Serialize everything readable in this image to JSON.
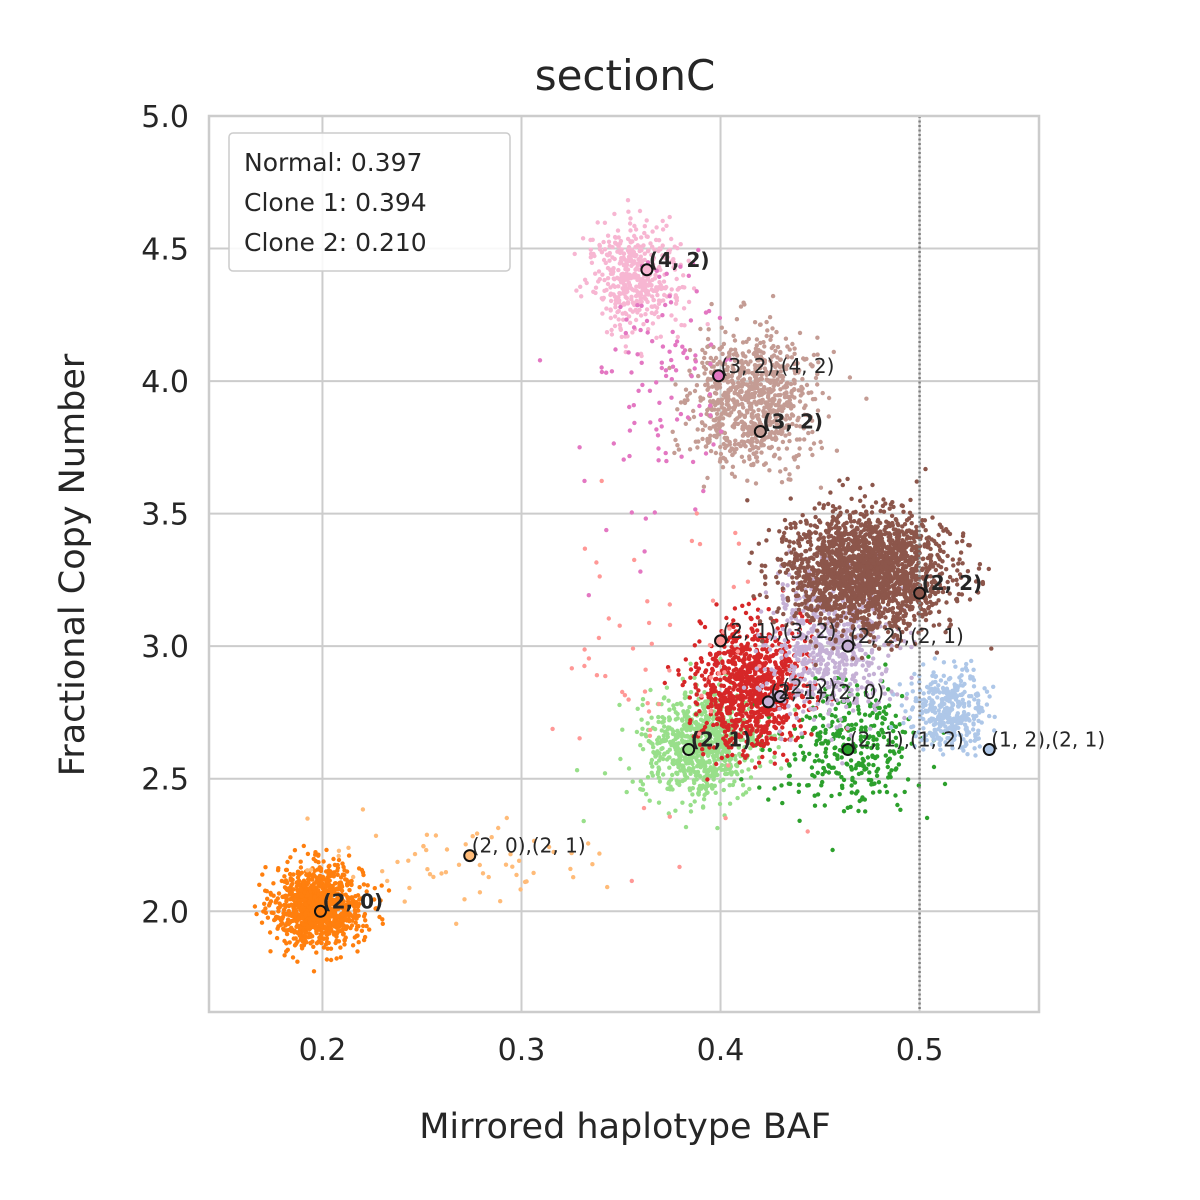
{
  "chart_data": {
    "type": "scatter",
    "title": "sectionC",
    "xlabel": "Mirrored haplotype BAF",
    "ylabel": "Fractional Copy Number",
    "xlim": [
      0.143,
      0.56
    ],
    "ylim": [
      1.62,
      5.0
    ],
    "xticks": [
      "0.2",
      "0.3",
      "0.4",
      "0.5"
    ],
    "yticks": [
      "2.0",
      "2.5",
      "3.0",
      "3.5",
      "4.0",
      "4.5",
      "5.0"
    ],
    "grid": true,
    "reference_line": {
      "x": 0.5,
      "style": "dotted"
    },
    "legend": {
      "placement": "top-left",
      "entries": [
        "Normal: 0.397",
        "Clone 1: 0.394",
        "Clone 2: 0.210"
      ]
    },
    "clusters": [
      {
        "color": "#ff7f0e",
        "x": 0.198,
        "y": 2.02,
        "sx": 0.011,
        "sy": 0.075,
        "n": 1100
      },
      {
        "color": "#ffbb78",
        "x": 0.27,
        "y": 2.18,
        "sx": 0.035,
        "sy": 0.1,
        "n": 60
      },
      {
        "color": "#98df8a",
        "x": 0.39,
        "y": 2.62,
        "sx": 0.015,
        "sy": 0.1,
        "n": 750
      },
      {
        "color": "#2ca02c",
        "x": 0.465,
        "y": 2.62,
        "sx": 0.018,
        "sy": 0.12,
        "n": 350
      },
      {
        "color": "#d62728",
        "x": 0.415,
        "y": 2.85,
        "sx": 0.013,
        "sy": 0.12,
        "n": 950
      },
      {
        "color": "#ff9896",
        "x": 0.38,
        "y": 2.95,
        "sx": 0.03,
        "sy": 0.3,
        "n": 60
      },
      {
        "color": "#aec7e8",
        "x": 0.515,
        "y": 2.76,
        "sx": 0.01,
        "sy": 0.07,
        "n": 380
      },
      {
        "color": "#c5b0d5",
        "x": 0.455,
        "y": 3.0,
        "sx": 0.016,
        "sy": 0.13,
        "n": 600
      },
      {
        "color": "#8c564b",
        "x": 0.473,
        "y": 3.28,
        "sx": 0.02,
        "sy": 0.11,
        "n": 2000
      },
      {
        "color": "#c49c94",
        "x": 0.415,
        "y": 3.93,
        "sx": 0.016,
        "sy": 0.12,
        "n": 850
      },
      {
        "color": "#f7b6d2",
        "x": 0.357,
        "y": 4.39,
        "sx": 0.011,
        "sy": 0.1,
        "n": 450
      },
      {
        "color": "#e377c2",
        "x": 0.37,
        "y": 4.0,
        "sx": 0.02,
        "sy": 0.25,
        "n": 110
      }
    ],
    "markers": [
      {
        "label": "(4, 2)",
        "bold": true,
        "x": 0.363,
        "y": 4.42,
        "fill": "#f7b6d2"
      },
      {
        "label": "(3, 2),(4, 2)",
        "bold": false,
        "x": 0.399,
        "y": 4.02,
        "fill": "#e377c2"
      },
      {
        "label": "(3, 2)",
        "bold": true,
        "x": 0.42,
        "y": 3.81,
        "fill": "#c49c94"
      },
      {
        "label": "(2, 2)",
        "bold": true,
        "x": 0.5,
        "y": 3.2,
        "fill": "#8c564b"
      },
      {
        "label": "(2, 1),(3, 2)",
        "bold": false,
        "x": 0.4,
        "y": 3.02,
        "fill": "#ff9896"
      },
      {
        "label": "(2, 2),(2, 1)",
        "bold": false,
        "x": 0.464,
        "y": 3.0,
        "fill": "#c5b0d5"
      },
      {
        "label": "(2, 2)",
        "bold": false,
        "x": 0.43,
        "y": 2.81,
        "fill": "#c5b0d5"
      },
      {
        "label": "(2, 1),(2, 0)",
        "bold": false,
        "x": 0.424,
        "y": 2.79,
        "fill": "#c5b0d5"
      },
      {
        "label": "(2, 1)",
        "bold": true,
        "x": 0.384,
        "y": 2.61,
        "fill": "#98df8a"
      },
      {
        "label": "(2, 1),(1, 2)",
        "bold": false,
        "x": 0.464,
        "y": 2.61,
        "fill": "#2ca02c"
      },
      {
        "label": "(1, 2),(2, 1)",
        "bold": false,
        "x": 0.535,
        "y": 2.61,
        "fill": "#aec7e8"
      },
      {
        "label": "(2, 0),(2, 1)",
        "bold": false,
        "x": 0.274,
        "y": 2.21,
        "fill": "#ffbb78"
      },
      {
        "label": "(2, 0)",
        "bold": true,
        "x": 0.199,
        "y": 2.0,
        "fill": "#ff7f0e"
      }
    ]
  }
}
